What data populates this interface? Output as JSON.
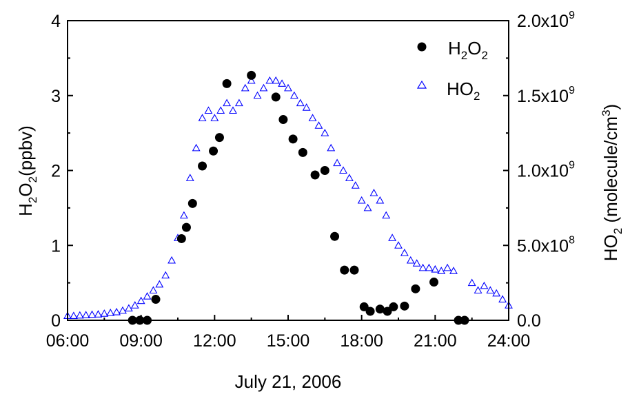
{
  "chart_data": {
    "type": "scatter",
    "title": "",
    "xlabel": "July 21, 2006",
    "x_ticks": [
      "06:00",
      "09:00",
      "12:00",
      "15:00",
      "18:00",
      "21:00",
      "24:00"
    ],
    "xlim_hours": [
      6,
      24
    ],
    "y_left": {
      "label_main": "H",
      "label_sub1": "2",
      "label_mid": "O",
      "label_sub2": "2",
      "label_unit": "(ppbv)",
      "ylim": [
        0,
        4
      ],
      "ticks": [
        "0",
        "1",
        "2",
        "3",
        "4"
      ]
    },
    "y_right": {
      "label_main": "HO",
      "label_sub": "2",
      "label_unit": " (molecule/cm",
      "label_sup": "3",
      "label_close": ")",
      "ylim": [
        0,
        2000000000
      ],
      "ticks": [
        {
          "value": 0,
          "mant": "0.0",
          "exp": ""
        },
        {
          "value": 500000000,
          "mant": "5.0x10",
          "exp": "8"
        },
        {
          "value": 1000000000,
          "mant": "1.0x10",
          "exp": "9"
        },
        {
          "value": 1500000000,
          "mant": "1.5x10",
          "exp": "9"
        },
        {
          "value": 2000000000,
          "mant": "2.0x10",
          "exp": "9"
        }
      ]
    },
    "legend": {
      "placement": "top-right",
      "h2o2": {
        "main": "H",
        "sub1": "2",
        "mid": "O",
        "sub2": "2"
      },
      "ho2": {
        "main": "HO",
        "sub": "2"
      }
    },
    "colors": {
      "h2o2": "#000000",
      "ho2": "#0000ff"
    },
    "series": [
      {
        "name": "H2O2",
        "axis": "left",
        "marker": "filled-circle",
        "x_hours": [
          8.65,
          8.95,
          9.25,
          9.6,
          10.65,
          10.85,
          11.1,
          11.5,
          11.95,
          12.2,
          12.5,
          13.5,
          14.5,
          14.8,
          15.2,
          15.6,
          16.1,
          16.5,
          16.9,
          17.3,
          17.7,
          18.1,
          18.35,
          18.75,
          19.05,
          19.3,
          19.75,
          20.2,
          20.95,
          21.95,
          22.2
        ],
        "values": [
          0.0,
          0.0,
          0.0,
          0.28,
          1.09,
          1.24,
          1.56,
          2.06,
          2.26,
          2.44,
          3.16,
          3.27,
          2.98,
          2.68,
          2.42,
          2.24,
          1.94,
          2.0,
          1.12,
          0.67,
          0.67,
          0.18,
          0.12,
          0.15,
          0.12,
          0.18,
          0.19,
          0.42,
          0.51,
          0.0,
          0.0
        ]
      },
      {
        "name": "HO2",
        "axis": "right",
        "marker": "open-triangle",
        "x_hours": [
          6.0,
          6.25,
          6.5,
          6.75,
          7.0,
          7.25,
          7.5,
          7.75,
          8.0,
          8.25,
          8.5,
          8.75,
          9.0,
          9.25,
          9.5,
          9.75,
          10.0,
          10.25,
          10.5,
          10.75,
          11.0,
          11.25,
          11.5,
          11.75,
          12.0,
          12.25,
          12.5,
          12.75,
          13.0,
          13.25,
          13.5,
          13.75,
          14.0,
          14.25,
          14.5,
          14.75,
          15.0,
          15.25,
          15.5,
          15.75,
          16.0,
          16.25,
          16.5,
          16.75,
          17.0,
          17.25,
          17.5,
          17.75,
          18.0,
          18.25,
          18.5,
          18.75,
          19.0,
          19.25,
          19.5,
          19.75,
          20.0,
          20.25,
          20.5,
          20.75,
          21.0,
          21.25,
          21.5,
          21.75,
          22.5,
          22.75,
          23.0,
          23.25,
          23.5,
          23.75,
          24.0
        ],
        "values": [
          30000000,
          30000000,
          33000000,
          35000000,
          38000000,
          40000000,
          45000000,
          50000000,
          55000000,
          65000000,
          80000000,
          100000000,
          130000000,
          160000000,
          200000000,
          240000000,
          300000000,
          400000000,
          550000000,
          700000000,
          950000000,
          1150000000,
          1350000000,
          1400000000,
          1350000000,
          1400000000,
          1450000000,
          1400000000,
          1450000000,
          1550000000,
          1600000000,
          1500000000,
          1550000000,
          1600000000,
          1600000000,
          1580000000,
          1550000000,
          1500000000,
          1450000000,
          1420000000,
          1350000000,
          1300000000,
          1250000000,
          1150000000,
          1050000000,
          1000000000,
          950000000,
          900000000,
          800000000,
          750000000,
          850000000,
          800000000,
          700000000,
          550000000,
          500000000,
          450000000,
          400000000,
          380000000,
          350000000,
          350000000,
          340000000,
          330000000,
          350000000,
          330000000,
          250000000,
          200000000,
          230000000,
          200000000,
          180000000,
          140000000,
          100000000
        ]
      }
    ]
  }
}
